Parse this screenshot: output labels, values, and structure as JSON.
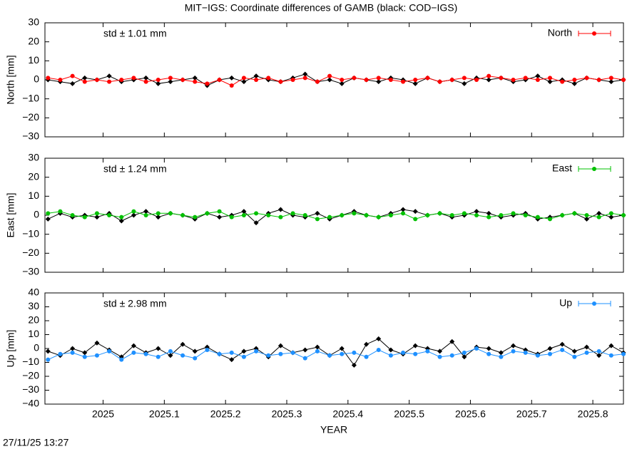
{
  "title": "MIT−IGS: Coordinate differences of GAMB (black: COD−IGS)",
  "xlabel": "YEAR",
  "footer": "27/11/25 13:27",
  "xlim": [
    2024.905,
    2025.85
  ],
  "xticks": [
    2025,
    2025.1,
    2025.2,
    2025.3,
    2025.4,
    2025.5,
    2025.6,
    2025.7,
    2025.8
  ],
  "x": [
    2024.91,
    2024.93,
    2024.95,
    2024.97,
    2024.99,
    2025.01,
    2025.03,
    2025.05,
    2025.07,
    2025.09,
    2025.11,
    2025.13,
    2025.15,
    2025.17,
    2025.19,
    2025.21,
    2025.23,
    2025.25,
    2025.27,
    2025.29,
    2025.31,
    2025.33,
    2025.35,
    2025.37,
    2025.39,
    2025.41,
    2025.43,
    2025.45,
    2025.47,
    2025.49,
    2025.51,
    2025.53,
    2025.55,
    2025.57,
    2025.59,
    2025.61,
    2025.63,
    2025.65,
    2025.67,
    2025.69,
    2025.71,
    2025.73,
    2025.75,
    2025.77,
    2025.79,
    2025.81,
    2025.83,
    2025.85
  ],
  "chart_data": [
    {
      "type": "line",
      "ylabel": "North [mm]",
      "annotation": "std ± 1.01 mm",
      "ylim": [
        -30,
        30
      ],
      "yticks": [
        {
          "value": -30,
          "label": "−30"
        },
        {
          "value": -20,
          "label": "−20"
        },
        {
          "value": -10,
          "label": "−10"
        },
        0,
        10,
        20,
        30
      ],
      "series": [
        {
          "color": "#000000",
          "values": [
            0,
            -1,
            -2,
            1,
            0,
            2,
            -1,
            0,
            1,
            -2,
            -1,
            0,
            1,
            -3,
            0,
            1,
            -1,
            2,
            0,
            -1,
            1,
            3,
            -1,
            0,
            -2,
            1,
            0,
            -1,
            1,
            0,
            -2,
            1,
            -1,
            0,
            -2,
            1,
            0,
            1,
            -1,
            0,
            2,
            -1,
            0,
            -2,
            1,
            0,
            -1,
            0
          ]
        },
        {
          "name": "North",
          "color": "#ff0000",
          "values": [
            1,
            0,
            2,
            -1,
            0,
            -1,
            0,
            1,
            -1,
            0,
            1,
            0,
            -1,
            -2,
            0,
            -3,
            1,
            0,
            1,
            -1,
            0,
            1,
            -1,
            2,
            0,
            1,
            0,
            1,
            0,
            -1,
            0,
            1,
            -1,
            0,
            1,
            0,
            2,
            1,
            0,
            1,
            0,
            1,
            -1,
            0,
            1,
            0,
            1,
            0
          ]
        }
      ]
    },
    {
      "type": "line",
      "ylabel": "East [mm]",
      "annotation": "std ± 1.24 mm",
      "ylim": [
        -30,
        30
      ],
      "yticks": [
        {
          "value": -30,
          "label": "−30"
        },
        {
          "value": -20,
          "label": "−20"
        },
        {
          "value": -10,
          "label": "−10"
        },
        0,
        10,
        20,
        30
      ],
      "series": [
        {
          "color": "#000000",
          "values": [
            -2,
            1,
            -1,
            0,
            -1,
            1,
            -3,
            0,
            2,
            -1,
            1,
            0,
            -2,
            1,
            -1,
            0,
            2,
            -4,
            1,
            3,
            0,
            -1,
            1,
            -2,
            0,
            2,
            0,
            -1,
            1,
            3,
            2,
            0,
            1,
            -1,
            0,
            2,
            1,
            -1,
            0,
            1,
            -2,
            -1,
            0,
            1,
            -2,
            1,
            -1,
            0
          ]
        },
        {
          "name": "East",
          "color": "#00c000",
          "values": [
            1,
            2,
            0,
            -1,
            1,
            0,
            -1,
            2,
            0,
            1,
            1,
            0,
            -1,
            1,
            2,
            -1,
            0,
            1,
            0,
            -1,
            1,
            0,
            -2,
            -1,
            0,
            1,
            0,
            -1,
            0,
            1,
            -2,
            0,
            1,
            0,
            1,
            0,
            -1,
            0,
            1,
            0,
            -1,
            -2,
            0,
            1,
            0,
            -1,
            1,
            0
          ]
        }
      ]
    },
    {
      "type": "line",
      "ylabel": "Up [mm]",
      "annotation": "std ± 2.98 mm",
      "ylim": [
        -40,
        40
      ],
      "yticks": [
        {
          "value": -40,
          "label": "−40"
        },
        {
          "value": -30,
          "label": "−30"
        },
        {
          "value": -20,
          "label": "−20"
        },
        {
          "value": -10,
          "label": "−10"
        },
        0,
        10,
        20,
        30,
        40
      ],
      "series": [
        {
          "color": "#000000",
          "values": [
            -2,
            -5,
            0,
            -3,
            4,
            -1,
            -6,
            2,
            -3,
            0,
            -5,
            3,
            -2,
            1,
            -4,
            -8,
            -2,
            0,
            -6,
            2,
            -3,
            -1,
            1,
            -5,
            0,
            -12,
            3,
            7,
            -1,
            -4,
            2,
            0,
            -2,
            5,
            -6,
            1,
            0,
            -3,
            2,
            -1,
            -4,
            0,
            3,
            -2,
            1,
            -5,
            2,
            -3
          ]
        },
        {
          "name": "Up",
          "color": "#1e90ff",
          "values": [
            -8,
            -4,
            -3,
            -6,
            -5,
            -2,
            -8,
            -3,
            -4,
            -6,
            -2,
            -5,
            -7,
            -1,
            -4,
            -3,
            -6,
            -2,
            -5,
            -4,
            -3,
            -7,
            -2,
            -5,
            -4,
            -3,
            -6,
            -1,
            -5,
            -3,
            -4,
            -2,
            -6,
            -5,
            -3,
            0,
            -4,
            -6,
            -2,
            -3,
            -5,
            -4,
            -1,
            -6,
            -3,
            -2,
            -5,
            -4
          ]
        }
      ]
    }
  ]
}
